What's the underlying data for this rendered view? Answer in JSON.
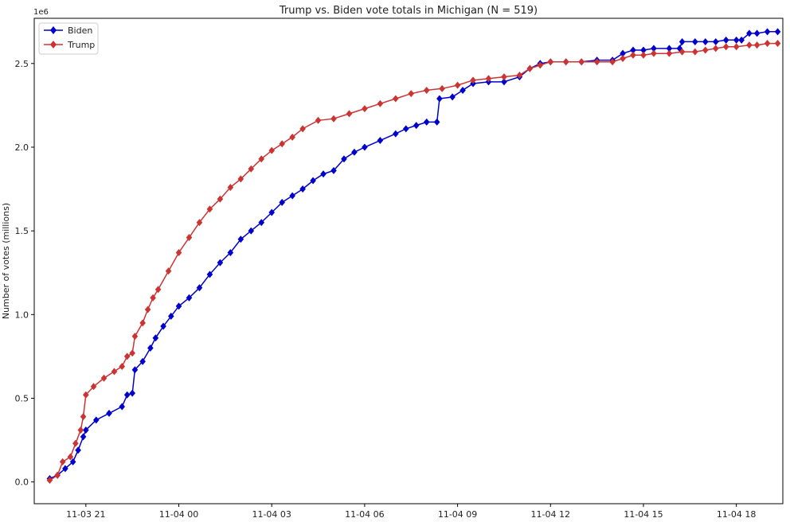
{
  "chart_data": {
    "type": "line",
    "title": "Trump vs. Biden vote totals in Michigan (N = 519)",
    "xlabel": "",
    "ylabel": "Number of votes (millions)",
    "y_offset_label": "1e6",
    "x_is_datetime": true,
    "x_ticks": [
      "11-03 21",
      "11-04 00",
      "11-04 03",
      "11-04 06",
      "11-04 09",
      "11-04 12",
      "11-04 15",
      "11-04 18"
    ],
    "y_ticks": [
      "0.0",
      "0.5",
      "1.0",
      "1.5",
      "2.0",
      "2.5"
    ],
    "ylim": [
      -0.13,
      2.77
    ],
    "xlim": [
      "2020-11-03 19:20",
      "2020-11-04 19:30"
    ],
    "legend": {
      "position": "top-left"
    },
    "grid": false,
    "series": [
      {
        "name": "Biden",
        "color": "#0000cc",
        "marker": "diamond",
        "points": [
          [
            "2020-11-03 19:50",
            0.02
          ],
          [
            "2020-11-03 20:05",
            0.04
          ],
          [
            "2020-11-03 20:20",
            0.08
          ],
          [
            "2020-11-03 20:35",
            0.12
          ],
          [
            "2020-11-03 20:45",
            0.19
          ],
          [
            "2020-11-03 20:55",
            0.27
          ],
          [
            "2020-11-03 21:00",
            0.31
          ],
          [
            "2020-11-03 21:20",
            0.37
          ],
          [
            "2020-11-03 21:45",
            0.41
          ],
          [
            "2020-11-03 22:10",
            0.45
          ],
          [
            "2020-11-03 22:20",
            0.52
          ],
          [
            "2020-11-03 22:30",
            0.53
          ],
          [
            "2020-11-03 22:35",
            0.67
          ],
          [
            "2020-11-03 22:50",
            0.72
          ],
          [
            "2020-11-03 23:05",
            0.8
          ],
          [
            "2020-11-03 23:15",
            0.86
          ],
          [
            "2020-11-03 23:30",
            0.93
          ],
          [
            "2020-11-03 23:45",
            0.99
          ],
          [
            "2020-11-04 00:00",
            1.05
          ],
          [
            "2020-11-04 00:20",
            1.1
          ],
          [
            "2020-11-04 00:40",
            1.16
          ],
          [
            "2020-11-04 01:00",
            1.24
          ],
          [
            "2020-11-04 01:20",
            1.31
          ],
          [
            "2020-11-04 01:40",
            1.37
          ],
          [
            "2020-11-04 02:00",
            1.45
          ],
          [
            "2020-11-04 02:20",
            1.5
          ],
          [
            "2020-11-04 02:40",
            1.55
          ],
          [
            "2020-11-04 03:00",
            1.61
          ],
          [
            "2020-11-04 03:20",
            1.67
          ],
          [
            "2020-11-04 03:40",
            1.71
          ],
          [
            "2020-11-04 04:00",
            1.75
          ],
          [
            "2020-11-04 04:20",
            1.8
          ],
          [
            "2020-11-04 04:40",
            1.84
          ],
          [
            "2020-11-04 05:00",
            1.86
          ],
          [
            "2020-11-04 05:20",
            1.93
          ],
          [
            "2020-11-04 05:40",
            1.97
          ],
          [
            "2020-11-04 06:00",
            2.0
          ],
          [
            "2020-11-04 06:30",
            2.04
          ],
          [
            "2020-11-04 07:00",
            2.08
          ],
          [
            "2020-11-04 07:20",
            2.11
          ],
          [
            "2020-11-04 07:40",
            2.13
          ],
          [
            "2020-11-04 08:00",
            2.15
          ],
          [
            "2020-11-04 08:20",
            2.15
          ],
          [
            "2020-11-04 08:25",
            2.29
          ],
          [
            "2020-11-04 08:50",
            2.3
          ],
          [
            "2020-11-04 09:10",
            2.34
          ],
          [
            "2020-11-04 09:30",
            2.38
          ],
          [
            "2020-11-04 10:00",
            2.39
          ],
          [
            "2020-11-04 10:30",
            2.39
          ],
          [
            "2020-11-04 11:00",
            2.42
          ],
          [
            "2020-11-04 11:20",
            2.47
          ],
          [
            "2020-11-04 11:40",
            2.5
          ],
          [
            "2020-11-04 12:00",
            2.51
          ],
          [
            "2020-11-04 12:30",
            2.51
          ],
          [
            "2020-11-04 13:00",
            2.51
          ],
          [
            "2020-11-04 13:30",
            2.52
          ],
          [
            "2020-11-04 14:00",
            2.52
          ],
          [
            "2020-11-04 14:20",
            2.56
          ],
          [
            "2020-11-04 14:40",
            2.58
          ],
          [
            "2020-11-04 15:00",
            2.58
          ],
          [
            "2020-11-04 15:20",
            2.59
          ],
          [
            "2020-11-04 15:50",
            2.59
          ],
          [
            "2020-11-04 16:10",
            2.59
          ],
          [
            "2020-11-04 16:15",
            2.63
          ],
          [
            "2020-11-04 16:40",
            2.63
          ],
          [
            "2020-11-04 17:00",
            2.63
          ],
          [
            "2020-11-04 17:20",
            2.63
          ],
          [
            "2020-11-04 17:40",
            2.64
          ],
          [
            "2020-11-04 18:00",
            2.64
          ],
          [
            "2020-11-04 18:10",
            2.64
          ],
          [
            "2020-11-04 18:25",
            2.68
          ],
          [
            "2020-11-04 18:40",
            2.68
          ],
          [
            "2020-11-04 19:00",
            2.69
          ],
          [
            "2020-11-04 19:20",
            2.69
          ]
        ]
      },
      {
        "name": "Trump",
        "color": "#cc3333",
        "marker": "diamond",
        "points": [
          [
            "2020-11-03 19:50",
            0.01
          ],
          [
            "2020-11-03 20:05",
            0.04
          ],
          [
            "2020-11-03 20:15",
            0.12
          ],
          [
            "2020-11-03 20:30",
            0.15
          ],
          [
            "2020-11-03 20:40",
            0.23
          ],
          [
            "2020-11-03 20:50",
            0.31
          ],
          [
            "2020-11-03 20:55",
            0.39
          ],
          [
            "2020-11-03 21:00",
            0.52
          ],
          [
            "2020-11-03 21:15",
            0.57
          ],
          [
            "2020-11-03 21:35",
            0.62
          ],
          [
            "2020-11-03 21:55",
            0.66
          ],
          [
            "2020-11-03 22:10",
            0.69
          ],
          [
            "2020-11-03 22:20",
            0.75
          ],
          [
            "2020-11-03 22:30",
            0.77
          ],
          [
            "2020-11-03 22:35",
            0.87
          ],
          [
            "2020-11-03 22:50",
            0.95
          ],
          [
            "2020-11-03 23:00",
            1.03
          ],
          [
            "2020-11-03 23:10",
            1.1
          ],
          [
            "2020-11-03 23:20",
            1.15
          ],
          [
            "2020-11-03 23:40",
            1.26
          ],
          [
            "2020-11-04 00:00",
            1.37
          ],
          [
            "2020-11-04 00:20",
            1.46
          ],
          [
            "2020-11-04 00:40",
            1.55
          ],
          [
            "2020-11-04 01:00",
            1.63
          ],
          [
            "2020-11-04 01:20",
            1.69
          ],
          [
            "2020-11-04 01:40",
            1.76
          ],
          [
            "2020-11-04 02:00",
            1.81
          ],
          [
            "2020-11-04 02:20",
            1.87
          ],
          [
            "2020-11-04 02:40",
            1.93
          ],
          [
            "2020-11-04 03:00",
            1.98
          ],
          [
            "2020-11-04 03:20",
            2.02
          ],
          [
            "2020-11-04 03:40",
            2.06
          ],
          [
            "2020-11-04 04:00",
            2.11
          ],
          [
            "2020-11-04 04:30",
            2.16
          ],
          [
            "2020-11-04 05:00",
            2.17
          ],
          [
            "2020-11-04 05:30",
            2.2
          ],
          [
            "2020-11-04 06:00",
            2.23
          ],
          [
            "2020-11-04 06:30",
            2.26
          ],
          [
            "2020-11-04 07:00",
            2.29
          ],
          [
            "2020-11-04 07:30",
            2.32
          ],
          [
            "2020-11-04 08:00",
            2.34
          ],
          [
            "2020-11-04 08:30",
            2.35
          ],
          [
            "2020-11-04 09:00",
            2.37
          ],
          [
            "2020-11-04 09:30",
            2.4
          ],
          [
            "2020-11-04 10:00",
            2.41
          ],
          [
            "2020-11-04 10:30",
            2.42
          ],
          [
            "2020-11-04 11:00",
            2.43
          ],
          [
            "2020-11-04 11:20",
            2.47
          ],
          [
            "2020-11-04 11:40",
            2.49
          ],
          [
            "2020-11-04 12:00",
            2.51
          ],
          [
            "2020-11-04 12:30",
            2.51
          ],
          [
            "2020-11-04 13:00",
            2.51
          ],
          [
            "2020-11-04 13:30",
            2.51
          ],
          [
            "2020-11-04 14:00",
            2.51
          ],
          [
            "2020-11-04 14:20",
            2.53
          ],
          [
            "2020-11-04 14:40",
            2.55
          ],
          [
            "2020-11-04 15:00",
            2.55
          ],
          [
            "2020-11-04 15:20",
            2.56
          ],
          [
            "2020-11-04 15:50",
            2.56
          ],
          [
            "2020-11-04 16:15",
            2.57
          ],
          [
            "2020-11-04 16:40",
            2.57
          ],
          [
            "2020-11-04 17:00",
            2.58
          ],
          [
            "2020-11-04 17:20",
            2.59
          ],
          [
            "2020-11-04 17:40",
            2.6
          ],
          [
            "2020-11-04 18:00",
            2.6
          ],
          [
            "2020-11-04 18:25",
            2.61
          ],
          [
            "2020-11-04 18:40",
            2.61
          ],
          [
            "2020-11-04 19:00",
            2.62
          ],
          [
            "2020-11-04 19:20",
            2.62
          ]
        ]
      }
    ]
  }
}
